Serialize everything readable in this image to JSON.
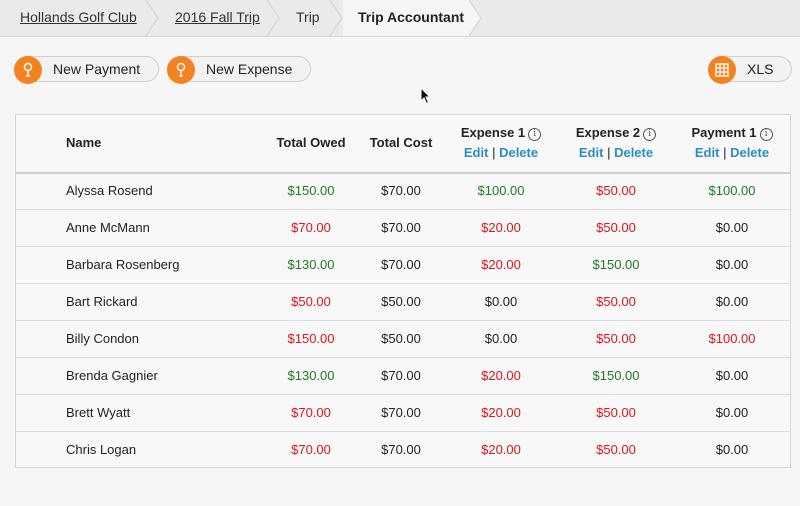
{
  "breadcrumb": {
    "items": [
      {
        "label": "Hollands Golf Club"
      },
      {
        "label": "2016 Fall Trip"
      },
      {
        "label": "Trip"
      },
      {
        "label": "Trip Accountant"
      }
    ]
  },
  "toolbar": {
    "new_payment": {
      "label": "New Payment",
      "icon": "golf-tee-icon"
    },
    "new_expense": {
      "label": "New Expense",
      "icon": "golf-tee-icon"
    },
    "xls": {
      "label": "XLS",
      "icon": "spreadsheet-icon"
    },
    "accent_color": "#f58220"
  },
  "table": {
    "columns": {
      "name": "Name",
      "total_owed": "Total Owed",
      "total_cost": "Total Cost",
      "expense1": "Expense 1",
      "expense2": "Expense 2",
      "payment1": "Payment 1",
      "info_glyph": "i",
      "edit": "Edit",
      "separator": "|",
      "delete": "Delete"
    },
    "colors": {
      "positive": "#1e7d1e",
      "negative": "#d9161c",
      "link": "#2a8fbd"
    },
    "rows": [
      {
        "name": "Alyssa Rosend",
        "total_owed": "$150.00",
        "total_cost": "$70.00",
        "expense1": "$100.00",
        "expense2": "$50.00",
        "payment1": "$100.00"
      },
      {
        "name": "Anne McMann",
        "total_owed": "$70.00",
        "total_cost": "$70.00",
        "expense1": "$20.00",
        "expense2": "$50.00",
        "payment1": "$0.00"
      },
      {
        "name": "Barbara Rosenberg",
        "total_owed": "$130.00",
        "total_cost": "$70.00",
        "expense1": "$20.00",
        "expense2": "$150.00",
        "payment1": "$0.00"
      },
      {
        "name": "Bart Rickard",
        "total_owed": "$50.00",
        "total_cost": "$50.00",
        "expense1": "$0.00",
        "expense2": "$50.00",
        "payment1": "$0.00"
      },
      {
        "name": "Billy Condon",
        "total_owed": "$150.00",
        "total_cost": "$50.00",
        "expense1": "$0.00",
        "expense2": "$50.00",
        "payment1": "$100.00"
      },
      {
        "name": "Brenda Gagnier",
        "total_owed": "$130.00",
        "total_cost": "$70.00",
        "expense1": "$20.00",
        "expense2": "$150.00",
        "payment1": "$0.00"
      },
      {
        "name": "Brett Wyatt",
        "total_owed": "$70.00",
        "total_cost": "$70.00",
        "expense1": "$20.00",
        "expense2": "$50.00",
        "payment1": "$0.00"
      },
      {
        "name": "Chris Logan",
        "total_owed": "$70.00",
        "total_cost": "$70.00",
        "expense1": "$20.00",
        "expense2": "$50.00",
        "payment1": "$0.00"
      }
    ],
    "cell_colors": [
      {
        "total_owed": "positive",
        "total_cost": "neutral",
        "expense1": "positive",
        "expense2": "negative",
        "payment1": "positive"
      },
      {
        "total_owed": "negative",
        "total_cost": "neutral",
        "expense1": "negative",
        "expense2": "negative",
        "payment1": "neutral"
      },
      {
        "total_owed": "positive",
        "total_cost": "neutral",
        "expense1": "negative",
        "expense2": "positive",
        "payment1": "neutral"
      },
      {
        "total_owed": "negative",
        "total_cost": "neutral",
        "expense1": "neutral",
        "expense2": "negative",
        "payment1": "neutral"
      },
      {
        "total_owed": "negative",
        "total_cost": "neutral",
        "expense1": "neutral",
        "expense2": "negative",
        "payment1": "negative"
      },
      {
        "total_owed": "positive",
        "total_cost": "neutral",
        "expense1": "negative",
        "expense2": "positive",
        "payment1": "neutral"
      },
      {
        "total_owed": "negative",
        "total_cost": "neutral",
        "expense1": "negative",
        "expense2": "negative",
        "payment1": "neutral"
      },
      {
        "total_owed": "negative",
        "total_cost": "neutral",
        "expense1": "negative",
        "expense2": "negative",
        "payment1": "neutral"
      }
    ]
  }
}
